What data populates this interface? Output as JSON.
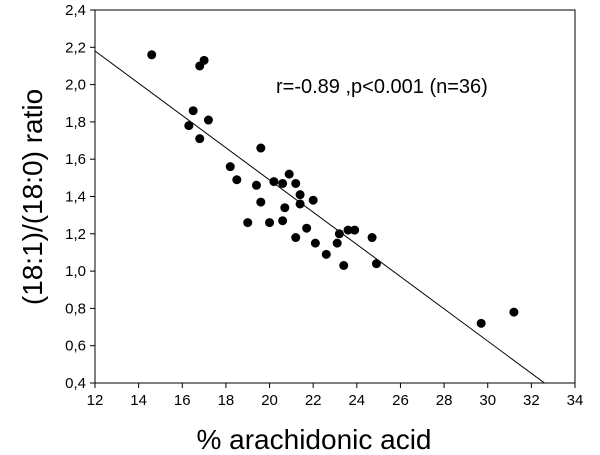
{
  "chart_data": {
    "type": "scatter",
    "title": "",
    "xlabel": "% arachidonic acid",
    "ylabel": "(18:1)/(18:0) ratio",
    "xlim": [
      12,
      34
    ],
    "ylim": [
      0.4,
      2.4
    ],
    "xticks": [
      12,
      14,
      16,
      18,
      20,
      22,
      24,
      26,
      28,
      30,
      32,
      34
    ],
    "xtick_labels": [
      "12",
      "14",
      "16",
      "18",
      "20",
      "22",
      "24",
      "26",
      "28",
      "30",
      "32",
      "34"
    ],
    "yticks": [
      0.4,
      0.6,
      0.8,
      1.0,
      1.2,
      1.4,
      1.6,
      1.8,
      2.0,
      2.2,
      2.4
    ],
    "ytick_labels": [
      "0,4",
      "0,6",
      "0,8",
      "1,0",
      "1,2",
      "1,4",
      "1,6",
      "1,8",
      "2,0",
      "2,2",
      "2,4"
    ],
    "grid": false,
    "annotation": "r=-0.89 ,p<0.001 (n=36)",
    "regression_line": {
      "x": [
        12,
        32.6
      ],
      "y": [
        2.18,
        0.4
      ]
    },
    "points": [
      {
        "x": 14.6,
        "y": 2.16
      },
      {
        "x": 16.3,
        "y": 1.78
      },
      {
        "x": 16.5,
        "y": 1.86
      },
      {
        "x": 16.8,
        "y": 1.71
      },
      {
        "x": 16.8,
        "y": 2.1
      },
      {
        "x": 17.0,
        "y": 2.13
      },
      {
        "x": 17.2,
        "y": 1.81
      },
      {
        "x": 18.2,
        "y": 1.56
      },
      {
        "x": 18.5,
        "y": 1.49
      },
      {
        "x": 19.0,
        "y": 1.26
      },
      {
        "x": 19.4,
        "y": 1.46
      },
      {
        "x": 19.6,
        "y": 1.66
      },
      {
        "x": 19.6,
        "y": 1.37
      },
      {
        "x": 20.0,
        "y": 1.26
      },
      {
        "x": 20.2,
        "y": 1.48
      },
      {
        "x": 20.6,
        "y": 1.27
      },
      {
        "x": 20.6,
        "y": 1.47
      },
      {
        "x": 20.7,
        "y": 1.34
      },
      {
        "x": 20.9,
        "y": 1.52
      },
      {
        "x": 21.2,
        "y": 1.47
      },
      {
        "x": 21.2,
        "y": 1.18
      },
      {
        "x": 21.4,
        "y": 1.41
      },
      {
        "x": 21.4,
        "y": 1.36
      },
      {
        "x": 21.7,
        "y": 1.23
      },
      {
        "x": 22.0,
        "y": 1.38
      },
      {
        "x": 22.1,
        "y": 1.15
      },
      {
        "x": 22.6,
        "y": 1.09
      },
      {
        "x": 23.1,
        "y": 1.15
      },
      {
        "x": 23.2,
        "y": 1.2
      },
      {
        "x": 23.4,
        "y": 1.03
      },
      {
        "x": 23.6,
        "y": 1.22
      },
      {
        "x": 23.9,
        "y": 1.22
      },
      {
        "x": 24.7,
        "y": 1.18
      },
      {
        "x": 24.9,
        "y": 1.04
      },
      {
        "x": 29.7,
        "y": 0.72
      },
      {
        "x": 31.2,
        "y": 0.78
      }
    ]
  }
}
